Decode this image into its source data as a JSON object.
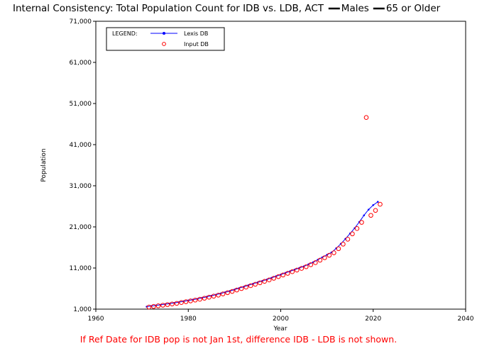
{
  "chart_data": {
    "type": "line",
    "title": "Internal Consistency: Total Population Count for IDB vs. LDB, ACT ",
    "title_legend": [
      {
        "name": "Males"
      },
      {
        "name": "65 or Older"
      }
    ],
    "xlabel": "Year",
    "ylabel": "Population",
    "xlim": [
      1960,
      2040
    ],
    "ylim": [
      1000,
      71000
    ],
    "x_ticks": [
      1960,
      1980,
      2000,
      2020,
      2040
    ],
    "x_tick_labels": [
      "1960",
      "1980",
      "2000",
      "2020",
      "2040"
    ],
    "y_ticks": [
      1000,
      11000,
      21000,
      31000,
      41000,
      51000,
      61000,
      71000
    ],
    "y_tick_labels": [
      "1,000",
      "11,000",
      "21,000",
      "31,000",
      "41,000",
      "51,000",
      "61,000",
      "71,000"
    ],
    "grid": false,
    "legend": {
      "title": "LEGEND:",
      "placement": "top-left",
      "entries": [
        {
          "name": "Lexis DB"
        },
        {
          "name": "Input DB"
        }
      ]
    },
    "colors": {
      "lexis": "#0000ff",
      "input": "#ff0000",
      "footnote": "#ff0000"
    },
    "series": [
      {
        "name": "Lexis DB",
        "style": "line+dots",
        "x": [
          1971,
          1972,
          1973,
          1974,
          1975,
          1976,
          1977,
          1978,
          1979,
          1980,
          1981,
          1982,
          1983,
          1984,
          1985,
          1986,
          1987,
          1988,
          1989,
          1990,
          1991,
          1992,
          1993,
          1994,
          1995,
          1996,
          1997,
          1998,
          1999,
          2000,
          2001,
          2002,
          2003,
          2004,
          2005,
          2006,
          2007,
          2008,
          2009,
          2010,
          2011,
          2012,
          2013,
          2014,
          2015,
          2016,
          2017,
          2018,
          2019,
          2020,
          2021
        ],
        "y": [
          1600,
          1750,
          1900,
          2050,
          2200,
          2350,
          2500,
          2700,
          2900,
          3100,
          3300,
          3500,
          3750,
          4000,
          4250,
          4500,
          4800,
          5100,
          5400,
          5750,
          6100,
          6450,
          6800,
          7150,
          7500,
          7850,
          8200,
          8600,
          9000,
          9400,
          9800,
          10200,
          10600,
          11000,
          11400,
          11900,
          12400,
          13000,
          13600,
          14200,
          14800,
          15800,
          16900,
          18100,
          19400,
          20700,
          22200,
          23800,
          25200,
          26300,
          27100
        ]
      },
      {
        "name": "Input DB",
        "style": "open-circles",
        "x": [
          1971.5,
          1972.5,
          1973.5,
          1974.5,
          1975.5,
          1976.5,
          1977.5,
          1978.5,
          1979.5,
          1980.5,
          1981.5,
          1982.5,
          1983.5,
          1984.5,
          1985.5,
          1986.5,
          1987.5,
          1988.5,
          1989.5,
          1990.5,
          1991.5,
          1992.5,
          1993.5,
          1994.5,
          1995.5,
          1996.5,
          1997.5,
          1998.5,
          1999.5,
          2000.5,
          2001.5,
          2002.5,
          2003.5,
          2004.5,
          2005.5,
          2006.5,
          2007.5,
          2008.5,
          2009.5,
          2010.5,
          2011.5,
          2012.5,
          2013.5,
          2014.5,
          2015.5,
          2016.5,
          2017.5,
          2018.5,
          2019.5,
          2020.5,
          2021.5
        ],
        "y": [
          1500,
          1650,
          1800,
          1950,
          2100,
          2250,
          2400,
          2600,
          2800,
          3000,
          3200,
          3400,
          3650,
          3900,
          4150,
          4400,
          4700,
          5000,
          5300,
          5650,
          6000,
          6350,
          6700,
          7050,
          7400,
          7750,
          8100,
          8500,
          8900,
          9300,
          9700,
          10100,
          10500,
          10900,
          11300,
          11800,
          12300,
          12900,
          13500,
          14100,
          14700,
          15700,
          16800,
          18000,
          19300,
          20600,
          22100,
          47600,
          23800,
          25000,
          26500
        ]
      }
    ]
  },
  "footnote": "If Ref Date for IDB pop is not Jan 1st, difference IDB - LDB is not shown."
}
